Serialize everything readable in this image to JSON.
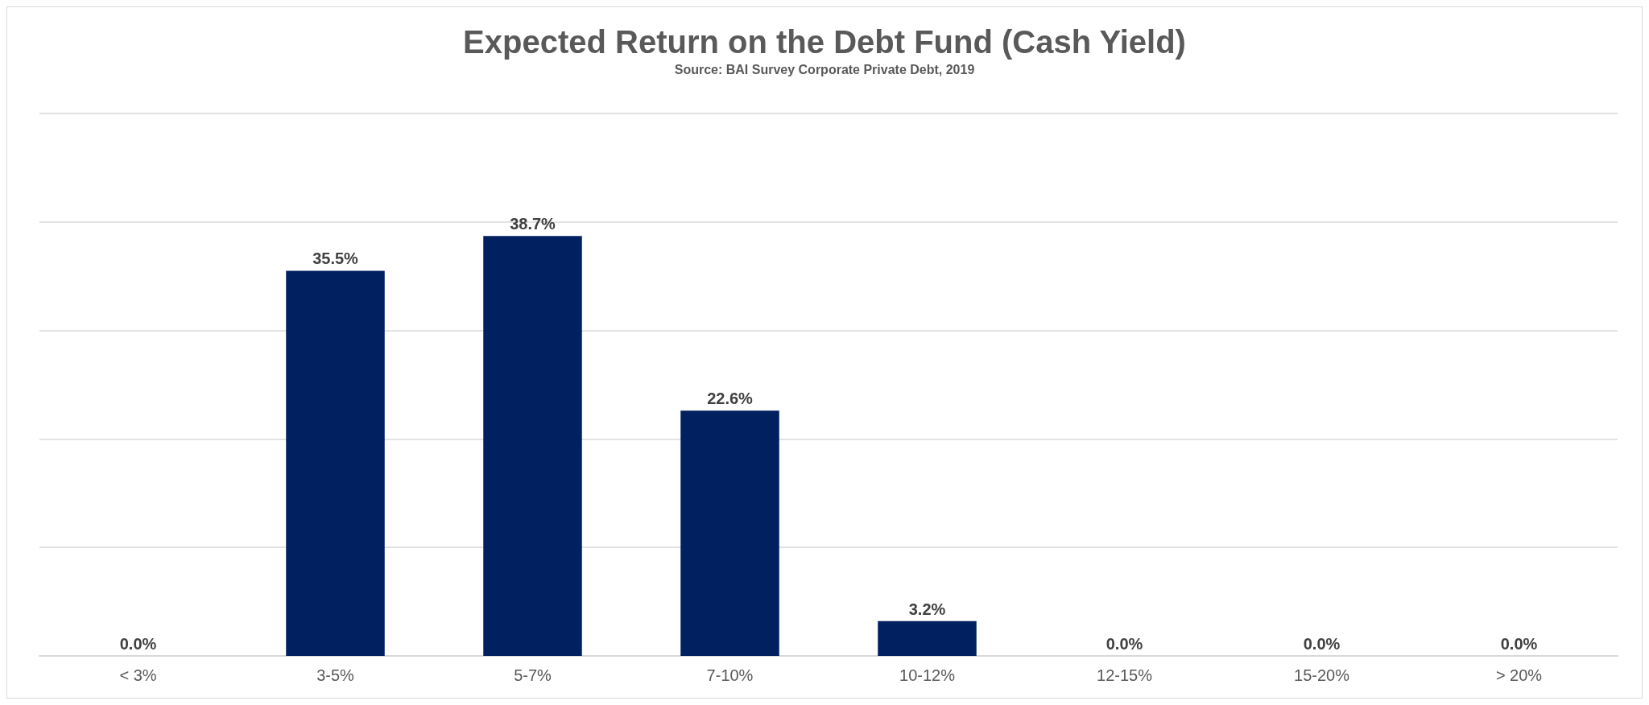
{
  "chart_data": {
    "type": "bar",
    "title": "Expected Return on the Debt Fund (Cash Yield)",
    "subtitle": "Source: BAI Survey Corporate Private Debt, 2019",
    "categories": [
      "< 3%",
      "3-5%",
      "5-7%",
      "7-10%",
      "10-12%",
      "12-15%",
      "15-20%",
      "> 20%"
    ],
    "values": [
      0,
      35.5,
      38.7,
      22.6,
      3.2,
      0,
      0,
      0
    ],
    "value_labels": [
      "0.0%",
      "35.5%",
      "38.7%",
      "22.6%",
      "3.2%",
      "0.0%",
      "0.0%",
      "0.0%"
    ],
    "color": "#002060",
    "ylim": [
      0,
      50
    ],
    "yticks": [
      {
        "value": 0,
        "label": null
      },
      {
        "value": 10,
        "label": null
      },
      {
        "value": 20,
        "label": null
      },
      {
        "value": 30,
        "label": null
      },
      {
        "value": 40,
        "label": null
      },
      {
        "value": 50,
        "label": null
      }
    ],
    "tick_labels": "x",
    "grid": "y"
  }
}
